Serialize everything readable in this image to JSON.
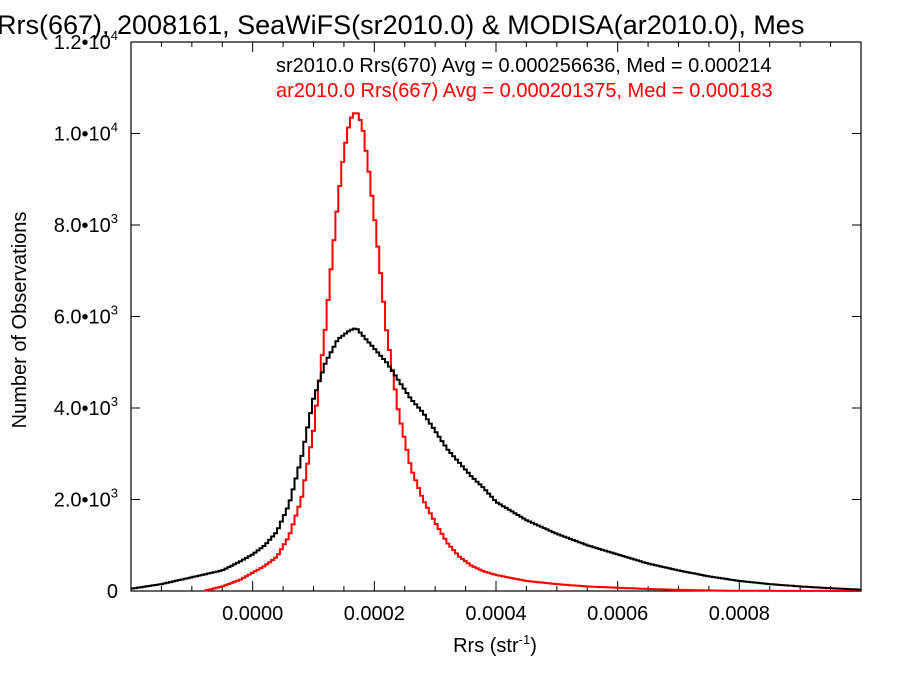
{
  "chart_data": {
    "type": "line",
    "title": "Rrs(667), 2008161, SeaWiFS(sr2010.0) & MODISA(ar2010.0), Mes",
    "xlabel": "Rrs (str",
    "xlabel_sup": "-1",
    "xlabel_close": ")",
    "ylabel": "Number of Observations",
    "xlim": [
      -0.0002,
      0.001
    ],
    "ylim": [
      0,
      12000
    ],
    "xticks": [
      {
        "value": 0.0,
        "label": "0.0000"
      },
      {
        "value": 0.0002,
        "label": "0.0002"
      },
      {
        "value": 0.0004,
        "label": "0.0004"
      },
      {
        "value": 0.0006,
        "label": "0.0006"
      },
      {
        "value": 0.0008,
        "label": "0.0008"
      }
    ],
    "yticks": [
      {
        "value": 0,
        "mantissa": "0",
        "exp": ""
      },
      {
        "value": 2000,
        "mantissa": "2.0•10",
        "exp": "3"
      },
      {
        "value": 4000,
        "mantissa": "4.0•10",
        "exp": "3"
      },
      {
        "value": 6000,
        "mantissa": "6.0•10",
        "exp": "3"
      },
      {
        "value": 8000,
        "mantissa": "8.0•10",
        "exp": "3"
      },
      {
        "value": 10000,
        "mantissa": "1.0•10",
        "exp": "4"
      },
      {
        "value": 12000,
        "mantissa": "1.2•10",
        "exp": "4"
      }
    ],
    "grid": false,
    "legend_position": "top-right",
    "series": [
      {
        "name": "sr2010.0 Rrs(670) Avg = 0.000256636, Med = 0.000214",
        "color": "#000000",
        "x": [
          -0.0002,
          -0.00015,
          -0.0001,
          -5e-05,
          -2e-05,
          0.0,
          2e-05,
          4e-05,
          6e-05,
          8e-05,
          0.0001,
          0.00012,
          0.00014,
          0.00016,
          0.00017,
          0.00018,
          0.0002,
          0.00022,
          0.00024,
          0.00026,
          0.00028,
          0.0003,
          0.00032,
          0.00034,
          0.00036,
          0.00038,
          0.0004,
          0.00045,
          0.0005,
          0.00055,
          0.0006,
          0.00065,
          0.0007,
          0.00075,
          0.0008,
          0.00085,
          0.0009,
          0.00095,
          0.001
        ],
        "y": [
          50,
          150,
          300,
          450,
          650,
          800,
          1000,
          1300,
          1900,
          2900,
          4200,
          5000,
          5500,
          5700,
          5750,
          5600,
          5300,
          5000,
          4600,
          4200,
          3900,
          3500,
          3100,
          2800,
          2500,
          2250,
          1950,
          1550,
          1250,
          1000,
          800,
          600,
          450,
          320,
          220,
          150,
          100,
          60,
          30
        ]
      },
      {
        "name": "ar2010.0 Rrs(667) Avg = 0.000201375, Med = 0.000183",
        "color": "#ff0000",
        "x": [
          -8e-05,
          -5e-05,
          -2e-05,
          0.0,
          2e-05,
          4e-05,
          6e-05,
          8e-05,
          0.0001,
          0.00012,
          0.00013,
          0.00014,
          0.00015,
          0.00016,
          0.00017,
          0.00018,
          0.00019,
          0.0002,
          0.00021,
          0.00022,
          0.00024,
          0.00026,
          0.00028,
          0.0003,
          0.00032,
          0.00034,
          0.00036,
          0.00038,
          0.0004,
          0.00045,
          0.0005,
          0.00055,
          0.0006,
          0.00065,
          0.0007,
          0.00075,
          0.0008,
          0.0009,
          0.001
        ],
        "y": [
          0,
          100,
          250,
          400,
          550,
          750,
          1200,
          2000,
          3500,
          5800,
          7200,
          8500,
          9600,
          10300,
          10500,
          10200,
          9300,
          8200,
          7000,
          5700,
          3900,
          2700,
          2000,
          1500,
          1050,
          750,
          550,
          430,
          350,
          220,
          150,
          100,
          70,
          45,
          25,
          12,
          5,
          2,
          0
        ]
      }
    ]
  }
}
